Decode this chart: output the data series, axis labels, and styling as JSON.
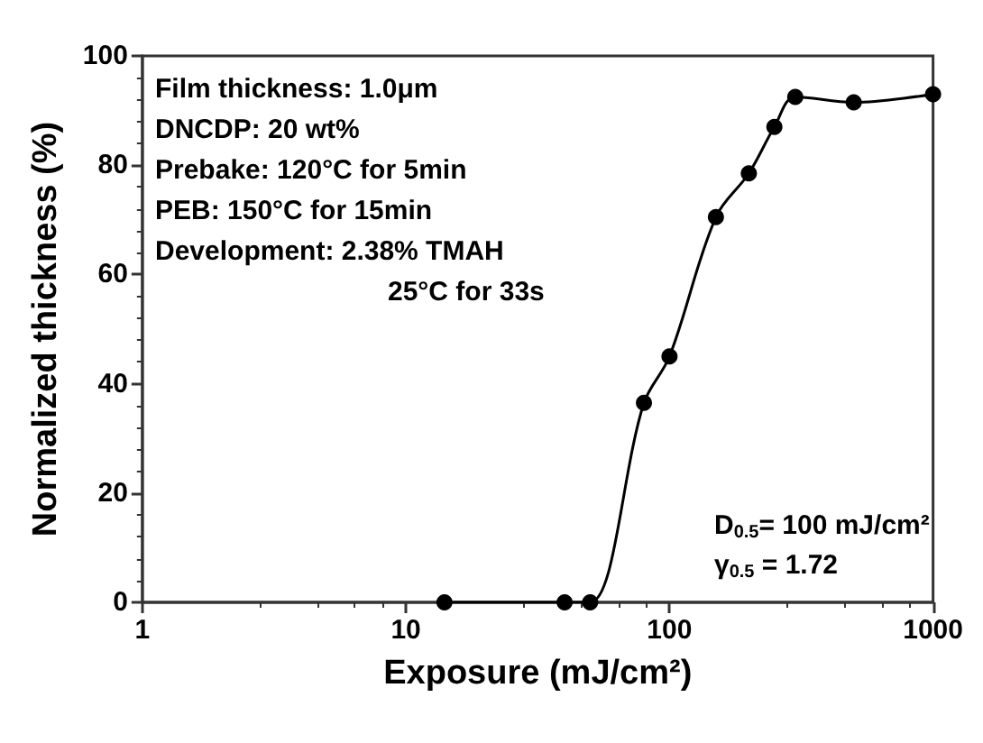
{
  "chart_data": {
    "type": "line",
    "xlabel": "Exposure (mJ/cm²)",
    "ylabel": "Normalized thickness (%)",
    "x": [
      14,
      40,
      50,
      80,
      100,
      150,
      200,
      250,
      300,
      500,
      1000
    ],
    "series": [
      {
        "color": "#000000",
        "values": [
          0,
          0,
          0,
          36.5,
          45,
          70.5,
          78.5,
          87,
          92.5,
          91.5,
          93
        ]
      }
    ],
    "log": "x",
    "xlim": [
      1,
      1000
    ],
    "xticks": [
      1,
      10,
      100,
      1000
    ],
    "ylim": [
      0,
      100
    ],
    "yticks": [
      0,
      20,
      40,
      60,
      80,
      100
    ],
    "marker": "circle",
    "line_style": "solid",
    "annotations": [
      "Film thickness: 1.0μm",
      "DNCDP: 20 wt%",
      "Prebake: 120°C for 5min",
      "PEB: 150°C for 15min",
      "Development: 2.38% TMAH",
      "25°C for 33s",
      "D$_{0.5}$= 100 mJ/cm²",
      "γ$_{0.5}$ = 1.72"
    ]
  }
}
